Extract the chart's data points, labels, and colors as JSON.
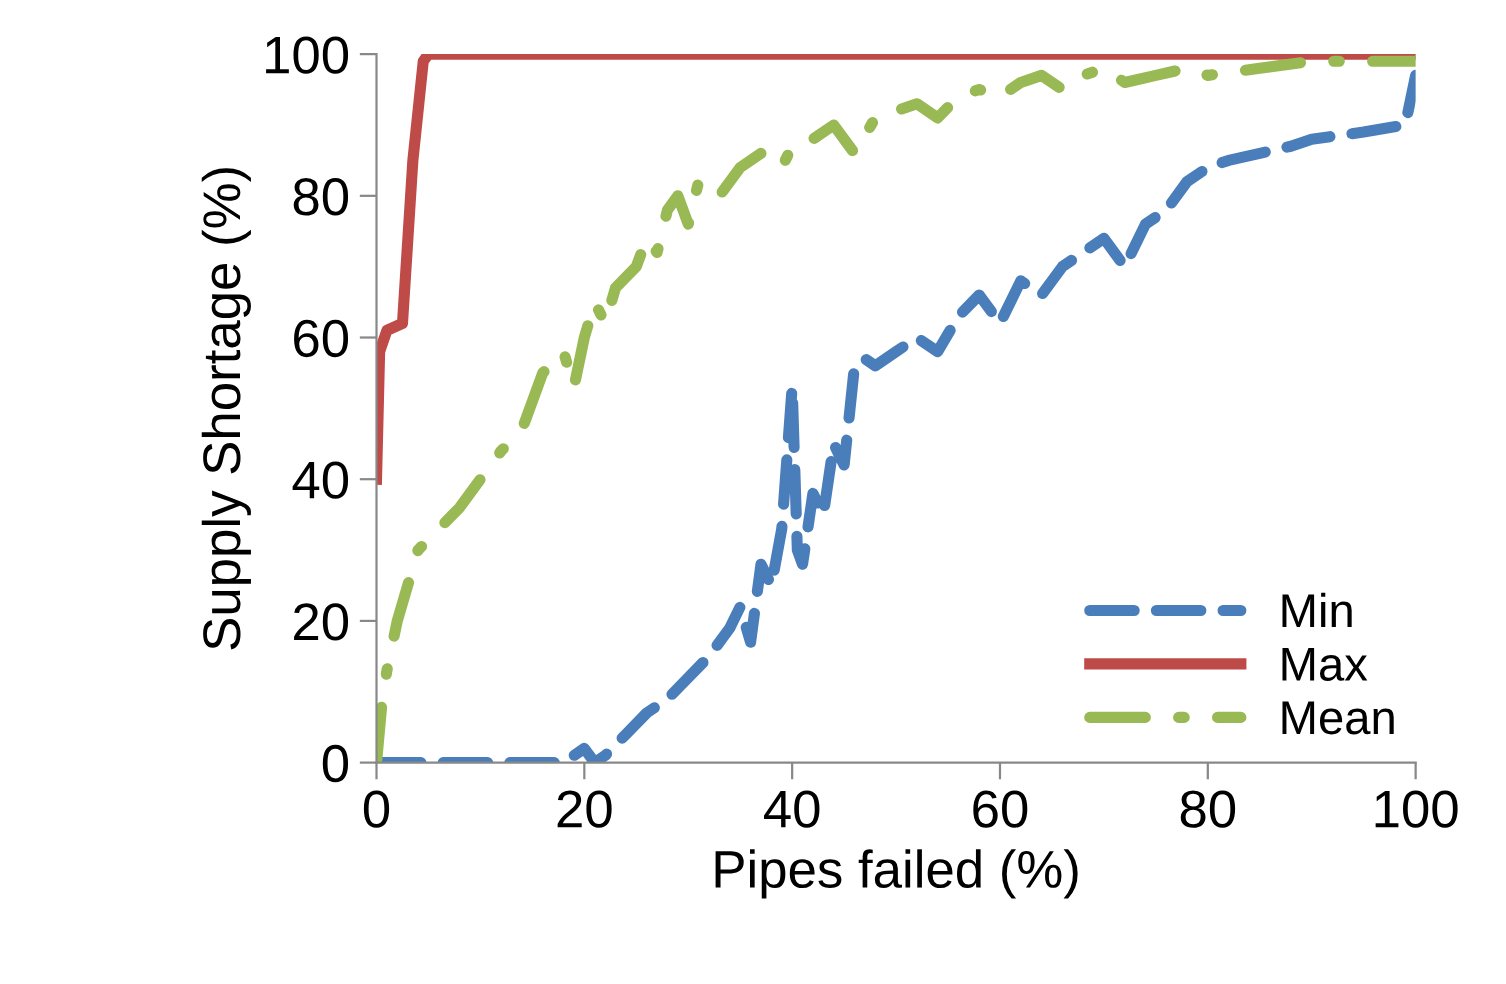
{
  "chart_data": {
    "type": "line",
    "xlabel": "Pipes failed (%)",
    "ylabel": "Supply Shortage (%)",
    "xlim": [
      0,
      100
    ],
    "ylim": [
      0,
      100
    ],
    "xticks": [
      0,
      20,
      40,
      60,
      80,
      100
    ],
    "yticks": [
      0,
      20,
      40,
      60,
      80,
      100
    ],
    "grid": false,
    "legend": "bottom right",
    "series": [
      {
        "name": "Min",
        "color": "#4a7ebb",
        "line_style": "dashed",
        "x": [
          0,
          5,
          10,
          15,
          18,
          19,
          20,
          21,
          22,
          24,
          26,
          28,
          30,
          32,
          34,
          35,
          36,
          37,
          38,
          39,
          40,
          40.5,
          41,
          42,
          43,
          44,
          45,
          46,
          47,
          48,
          50,
          52,
          54,
          56,
          58,
          60,
          62,
          64,
          66,
          68,
          70,
          72,
          74,
          76,
          78,
          80,
          82,
          85,
          88,
          90,
          95,
          99,
          100
        ],
        "values": [
          0,
          0,
          0,
          0,
          0,
          1,
          2,
          0,
          1,
          4,
          7,
          9,
          12,
          15,
          19,
          22,
          17,
          28,
          25,
          33,
          53,
          30,
          28,
          38,
          35,
          45,
          42,
          56,
          57,
          56,
          58,
          60,
          58,
          63,
          66,
          62,
          68,
          66,
          70,
          72,
          74,
          70,
          76,
          78,
          82,
          84,
          85,
          86,
          87,
          88,
          89,
          90,
          97
        ]
      },
      {
        "name": "Max",
        "color": "#be4b48",
        "line_style": "solid",
        "x": [
          0,
          0.3,
          1,
          2.5,
          3.5,
          4.5,
          5,
          100
        ],
        "values": [
          40,
          58,
          61,
          62,
          85,
          99,
          100,
          100
        ]
      },
      {
        "name": "Mean",
        "color": "#98b954",
        "line_style": "dashdot",
        "x": [
          0,
          0.5,
          1,
          2,
          3,
          4,
          6,
          8,
          10,
          12,
          14,
          16,
          18,
          19,
          20,
          21,
          22,
          23,
          25,
          26,
          27,
          28,
          29,
          30,
          31,
          33,
          35,
          37,
          39,
          40,
          42,
          44,
          46,
          48,
          50,
          52,
          54,
          56,
          58,
          60,
          62,
          64,
          66,
          68,
          70,
          72,
          75,
          78,
          80,
          85,
          90,
          95,
          100
        ],
        "values": [
          0,
          8,
          13,
          20,
          25,
          30,
          33,
          36,
          40,
          44,
          47,
          55,
          58,
          53,
          60,
          65,
          62,
          67,
          70,
          74,
          72,
          78,
          80,
          76,
          82,
          80,
          84,
          86,
          84,
          87,
          88,
          90,
          86,
          91,
          92,
          93,
          91,
          94,
          95,
          94,
          96,
          97,
          95,
          97,
          98,
          96,
          97,
          98,
          97,
          98,
          99,
          99,
          99
        ]
      }
    ]
  }
}
